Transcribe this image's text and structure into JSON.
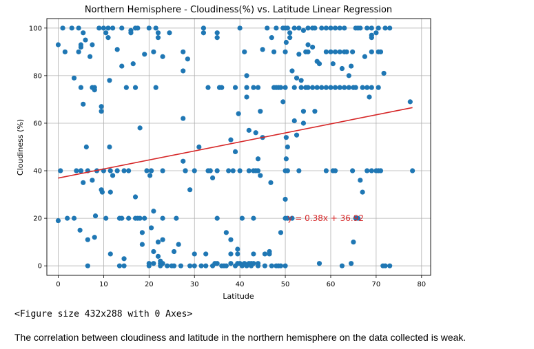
{
  "chart_data": {
    "type": "scatter",
    "title": "Northern Hemisphere - Cloudiness(%) vs. Latitude Linear Regression",
    "xlabel": "Latitude",
    "ylabel": "Cloudiness (%)",
    "xlim": [
      -2.5,
      82
    ],
    "ylim": [
      -4,
      104
    ],
    "xticks": [
      0,
      10,
      20,
      30,
      40,
      50,
      60,
      70,
      80
    ],
    "yticks": [
      0,
      20,
      40,
      60,
      80,
      100
    ],
    "grid": true,
    "point_color": "#1f77b4",
    "line_color": "#d62728",
    "regression": {
      "slope": 0.38,
      "intercept": 36.92,
      "x_range": [
        0,
        78
      ],
      "equation_label": "y = 0.38x + 36.92",
      "label_at": [
        50.5,
        20
      ]
    },
    "points": [
      [
        0,
        93
      ],
      [
        0,
        19
      ],
      [
        0.5,
        40
      ],
      [
        1,
        100
      ],
      [
        1.5,
        90
      ],
      [
        2,
        20
      ],
      [
        3,
        100
      ],
      [
        3.5,
        79
      ],
      [
        3.5,
        20
      ],
      [
        4,
        40
      ],
      [
        4.5,
        100
      ],
      [
        4.5,
        90
      ],
      [
        5,
        93
      ],
      [
        5,
        92
      ],
      [
        5,
        75
      ],
      [
        5,
        40
      ],
      [
        4.8,
        15
      ],
      [
        5,
        40
      ],
      [
        5.5,
        98
      ],
      [
        5.5,
        68
      ],
      [
        5.5,
        35
      ],
      [
        6,
        95
      ],
      [
        6.2,
        50
      ],
      [
        6.5,
        40
      ],
      [
        6.5,
        11
      ],
      [
        6.5,
        0
      ],
      [
        7,
        88
      ],
      [
        7.5,
        93
      ],
      [
        7.5,
        75
      ],
      [
        7.5,
        36
      ],
      [
        8,
        75
      ],
      [
        8,
        74
      ],
      [
        8.2,
        21
      ],
      [
        8,
        12
      ],
      [
        8.5,
        40
      ],
      [
        9,
        100
      ],
      [
        9.5,
        67
      ],
      [
        9.5,
        65
      ],
      [
        9.5,
        32
      ],
      [
        9.7,
        31
      ],
      [
        10,
        100
      ],
      [
        10,
        40
      ],
      [
        10.5,
        20
      ],
      [
        10.5,
        98
      ],
      [
        11,
        100
      ],
      [
        11,
        96
      ],
      [
        11.3,
        78
      ],
      [
        11.3,
        50
      ],
      [
        11.5,
        40
      ],
      [
        11.5,
        31
      ],
      [
        11.5,
        5
      ],
      [
        12,
        38
      ],
      [
        12,
        100
      ],
      [
        13,
        91
      ],
      [
        13,
        40
      ],
      [
        13.5,
        20
      ],
      [
        13.5,
        0
      ],
      [
        14,
        84
      ],
      [
        14,
        100
      ],
      [
        14.5,
        40
      ],
      [
        14,
        20
      ],
      [
        14.5,
        3
      ],
      [
        14.5,
        0
      ],
      [
        15,
        75
      ],
      [
        15.5,
        40
      ],
      [
        15.5,
        20
      ],
      [
        16,
        99
      ],
      [
        16,
        98
      ],
      [
        16.5,
        85
      ],
      [
        17,
        100
      ],
      [
        17,
        75
      ],
      [
        17,
        29
      ],
      [
        17,
        20
      ],
      [
        17.5,
        20
      ],
      [
        17.5,
        100
      ],
      [
        18,
        58
      ],
      [
        18,
        20
      ],
      [
        18.5,
        14
      ],
      [
        18.5,
        9
      ],
      [
        19,
        89
      ],
      [
        19,
        20
      ],
      [
        19.5,
        40
      ],
      [
        20,
        100
      ],
      [
        20,
        1
      ],
      [
        20,
        0
      ],
      [
        20.2,
        38
      ],
      [
        20.5,
        40
      ],
      [
        20.5,
        16
      ],
      [
        21,
        90
      ],
      [
        21,
        6
      ],
      [
        21,
        1
      ],
      [
        21,
        23
      ],
      [
        21.5,
        75
      ],
      [
        21.5,
        100
      ],
      [
        22,
        98
      ],
      [
        22,
        96
      ],
      [
        22,
        10
      ],
      [
        22,
        4
      ],
      [
        22.5,
        1
      ],
      [
        22.5,
        2
      ],
      [
        22.5,
        0
      ],
      [
        23,
        88
      ],
      [
        23,
        40
      ],
      [
        23,
        20
      ],
      [
        23,
        11
      ],
      [
        23,
        1
      ],
      [
        24,
        0
      ],
      [
        24.5,
        98
      ],
      [
        25,
        0
      ],
      [
        25.5,
        0
      ],
      [
        25.5,
        6
      ],
      [
        26,
        20
      ],
      [
        26.5,
        9
      ],
      [
        27,
        0
      ],
      [
        27.5,
        90
      ],
      [
        27.5,
        82
      ],
      [
        27.5,
        62
      ],
      [
        27.5,
        44
      ],
      [
        28,
        40
      ],
      [
        28,
        40
      ],
      [
        28.5,
        87
      ],
      [
        29,
        0
      ],
      [
        29,
        32
      ],
      [
        30,
        40
      ],
      [
        30,
        5
      ],
      [
        30,
        0
      ],
      [
        31,
        50
      ],
      [
        31.5,
        0
      ],
      [
        32,
        100
      ],
      [
        32,
        98
      ],
      [
        32.5,
        5
      ],
      [
        32.5,
        0
      ],
      [
        33,
        75
      ],
      [
        33,
        40
      ],
      [
        33.5,
        40
      ],
      [
        34,
        37
      ],
      [
        34,
        0
      ],
      [
        34.5,
        1
      ],
      [
        35,
        98
      ],
      [
        35,
        96
      ],
      [
        35,
        40
      ],
      [
        35,
        20
      ],
      [
        35,
        1
      ],
      [
        35.5,
        75
      ],
      [
        36,
        75
      ],
      [
        36,
        0
      ],
      [
        36.5,
        0
      ],
      [
        37,
        14
      ],
      [
        37,
        0
      ],
      [
        37.5,
        40
      ],
      [
        38,
        53
      ],
      [
        38,
        5
      ],
      [
        38,
        11
      ],
      [
        38,
        1
      ],
      [
        38.5,
        40
      ],
      [
        39,
        75
      ],
      [
        39,
        48
      ],
      [
        39,
        0
      ],
      [
        39.5,
        1
      ],
      [
        39.5,
        5
      ],
      [
        39.5,
        7
      ],
      [
        39.7,
        64
      ],
      [
        40,
        100
      ],
      [
        40,
        40
      ],
      [
        40,
        1
      ],
      [
        40.5,
        20
      ],
      [
        40.5,
        0
      ],
      [
        41,
        90
      ],
      [
        41,
        1
      ],
      [
        41.5,
        80
      ],
      [
        41.5,
        75
      ],
      [
        41.5,
        71
      ],
      [
        41.5,
        0
      ],
      [
        42,
        57
      ],
      [
        42,
        40
      ],
      [
        42,
        1
      ],
      [
        42.5,
        1
      ],
      [
        42.5,
        0
      ],
      [
        43,
        75
      ],
      [
        43,
        40
      ],
      [
        43,
        20
      ],
      [
        43,
        5
      ],
      [
        43,
        1
      ],
      [
        43.5,
        56
      ],
      [
        43.5,
        40
      ],
      [
        44,
        75
      ],
      [
        44,
        45
      ],
      [
        44,
        40
      ],
      [
        44,
        1
      ],
      [
        44,
        0
      ],
      [
        44.5,
        65
      ],
      [
        44.5,
        38
      ],
      [
        45,
        54
      ],
      [
        45,
        91
      ],
      [
        45.5,
        5
      ],
      [
        45.5,
        0
      ],
      [
        46,
        100
      ],
      [
        46.5,
        6
      ],
      [
        46.5,
        5
      ],
      [
        46.8,
        35
      ],
      [
        47,
        96
      ],
      [
        47,
        0
      ],
      [
        47.5,
        90
      ],
      [
        47.5,
        75
      ],
      [
        48,
        75
      ],
      [
        48,
        100
      ],
      [
        48,
        0
      ],
      [
        48.5,
        75
      ],
      [
        48.5,
        0
      ],
      [
        49,
        75
      ],
      [
        49,
        14
      ],
      [
        49,
        0
      ],
      [
        49.5,
        100
      ],
      [
        49.5,
        69
      ],
      [
        50,
        100
      ],
      [
        50,
        90
      ],
      [
        50,
        75
      ],
      [
        50,
        40
      ],
      [
        50,
        28
      ],
      [
        50,
        20
      ],
      [
        50,
        0
      ],
      [
        50.2,
        94
      ],
      [
        50.2,
        54
      ],
      [
        50.2,
        45
      ],
      [
        50.5,
        100
      ],
      [
        50.5,
        50
      ],
      [
        50.5,
        40
      ],
      [
        50.5,
        20
      ],
      [
        51,
        98
      ],
      [
        51,
        96
      ],
      [
        51.5,
        82
      ],
      [
        51.5,
        20
      ],
      [
        52,
        100
      ],
      [
        52,
        75
      ],
      [
        52,
        61
      ],
      [
        52.5,
        79
      ],
      [
        52.5,
        55
      ],
      [
        53,
        100
      ],
      [
        53,
        89
      ],
      [
        53,
        40
      ],
      [
        53.5,
        78
      ],
      [
        53.5,
        75
      ],
      [
        54,
        99
      ],
      [
        54,
        65
      ],
      [
        54,
        60
      ],
      [
        54.5,
        90
      ],
      [
        54.5,
        75
      ],
      [
        55,
        100
      ],
      [
        55,
        93
      ],
      [
        55,
        90
      ],
      [
        55,
        75
      ],
      [
        56,
        100
      ],
      [
        56,
        92
      ],
      [
        56,
        75
      ],
      [
        56.5,
        100
      ],
      [
        56.5,
        65
      ],
      [
        57,
        86
      ],
      [
        57,
        75
      ],
      [
        57.5,
        85
      ],
      [
        57.5,
        1
      ],
      [
        58,
        100
      ],
      [
        58,
        75
      ],
      [
        59,
        100
      ],
      [
        59,
        90
      ],
      [
        59,
        75
      ],
      [
        59,
        40
      ],
      [
        60,
        100
      ],
      [
        60,
        90
      ],
      [
        60,
        75
      ],
      [
        60.5,
        85
      ],
      [
        60.5,
        40
      ],
      [
        61,
        100
      ],
      [
        61,
        90
      ],
      [
        61,
        75
      ],
      [
        61,
        40
      ],
      [
        62,
        100
      ],
      [
        62,
        90
      ],
      [
        62,
        75
      ],
      [
        62.5,
        83
      ],
      [
        62.5,
        0
      ],
      [
        63,
        100
      ],
      [
        63,
        90
      ],
      [
        63,
        75
      ],
      [
        63.5,
        90
      ],
      [
        64,
        80
      ],
      [
        64,
        75
      ],
      [
        64.5,
        84
      ],
      [
        64.5,
        1
      ],
      [
        64.8,
        90
      ],
      [
        64.8,
        40
      ],
      [
        65,
        75
      ],
      [
        65,
        10
      ],
      [
        65.5,
        100
      ],
      [
        65.5,
        75
      ],
      [
        65.5,
        20
      ],
      [
        66,
        100
      ],
      [
        66,
        20
      ],
      [
        66.5,
        100
      ],
      [
        66.5,
        36
      ],
      [
        67,
        75
      ],
      [
        67,
        31
      ],
      [
        67.5,
        88
      ],
      [
        68,
        100
      ],
      [
        68,
        40
      ],
      [
        68,
        75
      ],
      [
        68.5,
        71
      ],
      [
        69,
        100
      ],
      [
        69,
        97
      ],
      [
        69,
        96
      ],
      [
        69,
        90
      ],
      [
        69,
        75
      ],
      [
        69,
        40
      ],
      [
        70,
        98
      ],
      [
        70,
        40
      ],
      [
        70.5,
        100
      ],
      [
        70.5,
        90
      ],
      [
        70.5,
        75
      ],
      [
        70.5,
        40
      ],
      [
        71,
        90
      ],
      [
        71,
        40
      ],
      [
        71.5,
        0
      ],
      [
        71.7,
        81
      ],
      [
        72,
        100
      ],
      [
        72,
        0
      ],
      [
        73,
        100
      ],
      [
        73,
        0
      ],
      [
        77.5,
        69
      ],
      [
        78,
        40
      ]
    ]
  },
  "figure_note": "<Figure size 432x288 with 0 Axes>",
  "caption": "The correlation between cloudiness and latitude in the northern hemisphere on the data collected is weak."
}
